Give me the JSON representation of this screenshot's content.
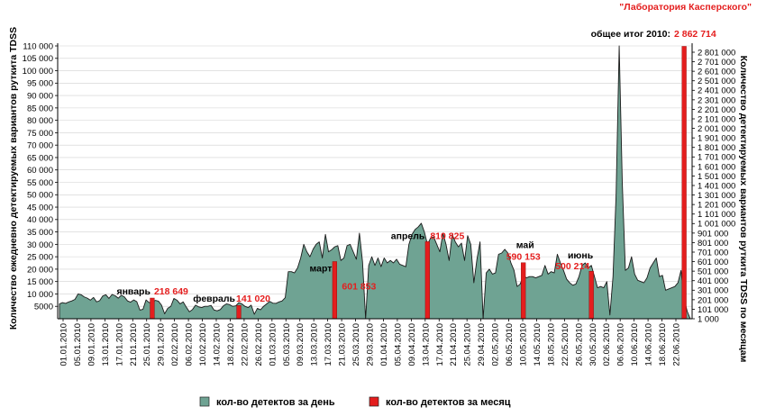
{
  "source_label": "\"Лаборатория Касперского\"",
  "total_label": "общее итог 2010:",
  "total_value": "2 862 714",
  "legend": {
    "daily_label": "кол-во детектов за день",
    "monthly_label": "кол-во детектов за месяц"
  },
  "colors": {
    "area_fill": "#6fa393",
    "area_stroke": "#1a1a1a",
    "monthly_bar": "#e41e1e",
    "monthly_text": "#e41e1e"
  },
  "chart_data": {
    "type": "area",
    "ylabel": "Количество ежедневно детектируемых вариантов руткита TDSS",
    "y2label": "Количество детектируемых вариантов руткита TDSS по месяцам",
    "ylim": [
      0,
      110000
    ],
    "yticks": [
      5000,
      10000,
      15000,
      20000,
      25000,
      30000,
      35000,
      40000,
      45000,
      50000,
      55000,
      60000,
      65000,
      70000,
      75000,
      80000,
      85000,
      90000,
      95000,
      100000,
      105000,
      110000
    ],
    "ytick_labels": [
      "5000",
      "10 000",
      "15 000",
      "20 000",
      "25 000",
      "30 000",
      "35 000",
      "40 000",
      "45 000",
      "50 000",
      "55 000",
      "60 000",
      "65 000",
      "70 000",
      "75 000",
      "80 000",
      "85 000",
      "90 000",
      "95 000",
      "100 000",
      "105 000",
      "110 000"
    ],
    "y2lim": [
      1000,
      2862714
    ],
    "y2ticks": [
      1000,
      101000,
      201000,
      301000,
      401000,
      501000,
      601000,
      701000,
      801000,
      901000,
      1001000,
      1101000,
      1201000,
      1301000,
      1401000,
      1501000,
      1601000,
      1701000,
      1801000,
      1901000,
      2001000,
      2101000,
      2201000,
      2301000,
      2401000,
      2501000,
      2601000,
      2701000,
      2801000
    ],
    "y2tick_labels": [
      "1 000",
      "101 000",
      "201 000",
      "301 000",
      "401 000",
      "501 000",
      "601 000",
      "701 000",
      "801 000",
      "901 000",
      "1 001 000",
      "1 101 000",
      "1 201 000",
      "1 301 000",
      "1 401 000",
      "1 501 000",
      "1 601 000",
      "1 701 000",
      "1 801 000",
      "1 901 000",
      "2 001 000",
      "2 101 000",
      "2 201 000",
      "2 301 000",
      "2 401 000",
      "2 501 000",
      "2 601 000",
      "2 701 000",
      "2 801 000"
    ],
    "x_tick_labels": [
      "01.01.2010",
      "05.01.2010",
      "09.01.2010",
      "13.01.2010",
      "17.01.2010",
      "21.01.2010",
      "25.01.2010",
      "29.01.2010",
      "02.02.2010",
      "06.02.2010",
      "10.02.2010",
      "14.02.2010",
      "18.02.2010",
      "22.02.2010",
      "26.02.2010",
      "01.03.2010",
      "05.03.2010",
      "09.03.2010",
      "13.03.2010",
      "17.03.2010",
      "21.03.2010",
      "25.03.2010",
      "29.03.2010",
      "01.04.2010",
      "05.04.2010",
      "09.04.2010",
      "13.04.2010",
      "17.04.2010",
      "21.04.2010",
      "25.04.2010",
      "29.04.2010",
      "02.05.2010",
      "06.05.2010",
      "10.05.2010",
      "14.05.2010",
      "18.05.2010",
      "22.05.2010",
      "26.05.2010",
      "30.05.2010",
      "02.06.2010",
      "06.06.2010",
      "10.06.2010",
      "14.06.2010",
      "18.06.2010",
      "22.06.2010"
    ],
    "daily_values": [
      6000,
      6500,
      6200,
      6800,
      7200,
      7800,
      10000,
      9700,
      8800,
      8300,
      7500,
      8600,
      6800,
      7300,
      9200,
      9700,
      8200,
      9800,
      9300,
      8300,
      9500,
      8800,
      7200,
      6700,
      7600,
      6900,
      3500,
      3800,
      7600,
      6500,
      6800,
      7400,
      7100,
      5500,
      2000,
      4200,
      5000,
      8200,
      7500,
      6000,
      6800,
      4700,
      2800,
      3700,
      5500,
      4800,
      4500,
      5000,
      5000,
      5400,
      3500,
      3200,
      3700,
      5200,
      6000,
      5700,
      5000,
      5200,
      6500,
      6000,
      5000,
      4500,
      5500,
      1800,
      4200,
      3600,
      5000,
      6000,
      7000,
      6300,
      6200,
      6800,
      7200,
      8500,
      19000,
      19000,
      18500,
      20500,
      24500,
      30000,
      27000,
      25000,
      28000,
      30000,
      31000,
      24500,
      34000,
      27000,
      27800,
      29000,
      29500,
      23500,
      24500,
      29500,
      30000,
      27000,
      24000,
      34500,
      23000,
      0,
      21500,
      25000,
      21500,
      24500,
      21000,
      24500,
      22500,
      23500,
      22500,
      24000,
      22000,
      21500,
      21000,
      30000,
      34000,
      36000,
      37000,
      38500,
      35000,
      30000,
      32500,
      33000,
      30000,
      27000,
      34500,
      30000,
      23500,
      34000,
      31000,
      29000,
      30500,
      23500,
      33500,
      30000,
      14500,
      24000,
      31000,
      0,
      18500,
      20000,
      18000,
      18500,
      26000,
      26500,
      28000,
      26500,
      22500,
      19500,
      13000,
      14000,
      17500,
      16500,
      17000,
      17000,
      16500,
      17000,
      17500,
      21500,
      18000,
      19000,
      18500,
      26000,
      22500,
      19500,
      16000,
      14500,
      13500,
      14000,
      17000,
      21500,
      22500,
      20500,
      21500,
      17000,
      12500,
      13000,
      12500,
      15000,
      1500,
      17000,
      50000,
      110000,
      55000,
      19500,
      20500,
      25000,
      18000,
      15500,
      15000,
      14500,
      16500,
      20500,
      22500,
      24500,
      17000,
      17500,
      11500,
      12000,
      12500,
      13000,
      14500,
      19500,
      8000,
      3000,
      0
    ],
    "monthly": [
      {
        "month": "январь",
        "value": 218649,
        "value_label": "218 649"
      },
      {
        "month": "февраль",
        "value": 141020,
        "value_label": "141 020"
      },
      {
        "month": "март",
        "value": 601853,
        "value_label": "601 853"
      },
      {
        "month": "апрель",
        "value": 810825,
        "value_label": "810 825"
      },
      {
        "month": "май",
        "value": 590153,
        "value_label": "590 153"
      },
      {
        "month": "июнь",
        "value": 500214,
        "value_label": "500 214"
      },
      {
        "month": "",
        "value": 2862714,
        "value_label": "2 862 714"
      }
    ]
  }
}
